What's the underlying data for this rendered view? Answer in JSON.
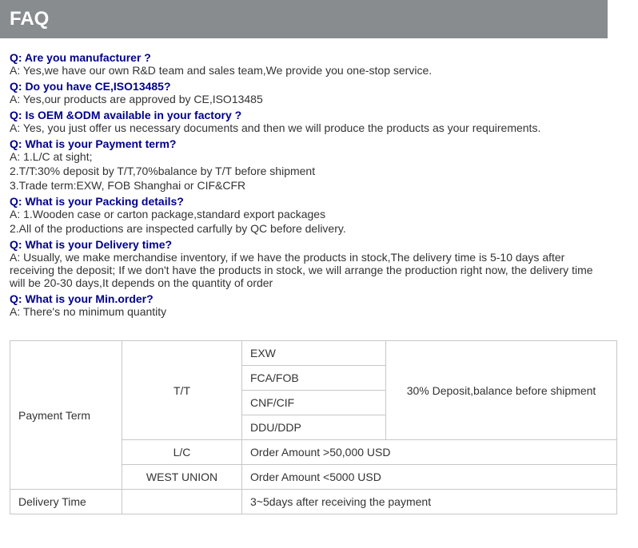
{
  "header": {
    "title": "FAQ"
  },
  "faq": [
    {
      "q": "Q: Are you manufacturer ?",
      "a": [
        "A: Yes,we have our own R&D team and sales team,We provide you one-stop service."
      ]
    },
    {
      "q": "Q: Do you have CE,ISO13485?",
      "a": [
        "A: Yes,our products are approved by CE,ISO13485"
      ]
    },
    {
      "q": "Q: Is OEM &ODM available in your factory ?",
      "a": [
        "A: Yes, you just offer us necessary documents and then we will produce the products as your requirements."
      ]
    },
    {
      "q": "Q: What is your Payment term?",
      "a": [
        "A: 1.L/C at sight;",
        "2.T/T:30% deposit by T/T,70%balance by T/T before shipment",
        "3.Trade term:EXW, FOB Shanghai or CIF&CFR"
      ]
    },
    {
      "q": "Q: What is your Packing details?",
      "a": [
        "A: 1.Wooden case or carton package,standard export packages",
        "2.All of the productions are inspected carfully by QC before delivery."
      ]
    },
    {
      "q": "Q: What is your Delivery time?",
      "a": [
        "A: Usually, we make merchandise inventory, if we have the products in stock,The delivery time is 5-10 days after receiving the deposit; If we don't have the products in stock, we will arrange the production right now, the delivery time will be 20-30 days,It depends on the quantity of order"
      ]
    },
    {
      "q": "Q: What is your Min.order?",
      "a": [
        "A: There's no minimum quantity"
      ]
    }
  ],
  "table": {
    "col1_payment": "Payment Term",
    "col1_delivery": "Delivery Time",
    "method_tt": "T/T",
    "method_lc": "L/C",
    "method_wu": "WEST UNION",
    "tt_row1": "EXW",
    "tt_row2": "FCA/FOB",
    "tt_row3": "CNF/CIF",
    "tt_row4": "DDU/DDP",
    "tt_note": "30% Deposit,balance before shipment",
    "lc_note": "Order Amount >50,000 USD",
    "wu_note": "Order Amount <5000 USD",
    "delivery_note": "3~5days after receiving the payment"
  }
}
